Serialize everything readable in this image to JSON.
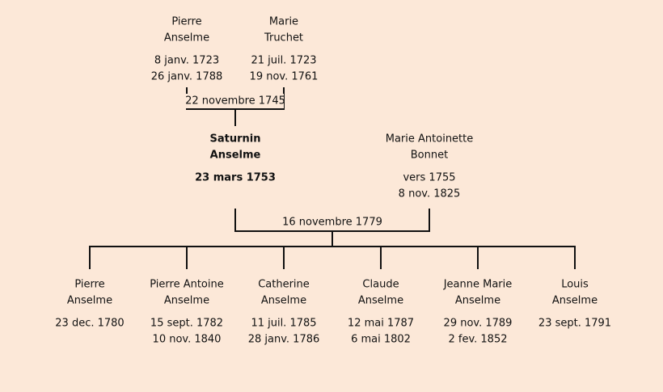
{
  "grandparents": {
    "persons": [
      {
        "given": "Pierre",
        "surname": "Anselme",
        "dates": [
          "8 janv. 1723",
          "26 janv. 1788"
        ]
      },
      {
        "given": "Marie",
        "surname": "Truchet",
        "dates": [
          "21 juil. 1723",
          "19 nov. 1761"
        ]
      }
    ],
    "marriage": "22 novembre 1745"
  },
  "parents": {
    "persons": [
      {
        "given": "Saturnin",
        "surname": "Anselme",
        "dates": [
          "23 mars 1753"
        ]
      },
      {
        "given": "Marie Antoinette",
        "surname": "Bonnet",
        "dates": [
          "vers 1755",
          "8 nov. 1825"
        ]
      }
    ],
    "marriage": "16 novembre 1779"
  },
  "children": [
    {
      "given": "Pierre",
      "surname": "Anselme",
      "dates": [
        "23 dec. 1780"
      ]
    },
    {
      "given": "Pierre Antoine",
      "surname": "Anselme",
      "dates": [
        "15 sept. 1782",
        "10 nov. 1840"
      ]
    },
    {
      "given": "Catherine",
      "surname": "Anselme",
      "dates": [
        "11 juil. 1785",
        "28 janv. 1786"
      ]
    },
    {
      "given": "Claude",
      "surname": "Anselme",
      "dates": [
        "12 mai 1787",
        "6 mai 1802"
      ]
    },
    {
      "given": "Jeanne Marie",
      "surname": "Anselme",
      "dates": [
        "29 nov. 1789",
        "2 fev. 1852"
      ]
    },
    {
      "given": "Louis",
      "surname": "Anselme",
      "dates": [
        "23 sept. 1791"
      ]
    }
  ]
}
